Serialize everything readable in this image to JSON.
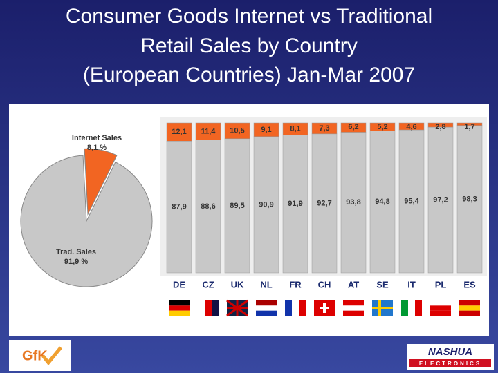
{
  "title_lines": [
    "Consumer Goods Internet vs Traditional",
    "Retail Sales by Country",
    "(European Countries) Jan-Mar 2007"
  ],
  "logos": {
    "left": "GfK",
    "right": "NASHUA",
    "right_sub": "ELECTRONICS"
  },
  "chart_data": [
    {
      "type": "pie",
      "categories": [
        "Internet Sales",
        "Trad. Sales"
      ],
      "values": [
        8.1,
        91.9
      ],
      "value_labels": [
        "8,1 %",
        "91,9 %"
      ],
      "colors": [
        "#f26522",
        "#c8c8c8"
      ]
    },
    {
      "type": "bar",
      "stacked": true,
      "categories": [
        "DE",
        "CZ",
        "UK",
        "NL",
        "FR",
        "CH",
        "AT",
        "SE",
        "IT",
        "PL",
        "ES"
      ],
      "ylim": [
        0,
        100
      ],
      "series": [
        {
          "name": "Internet",
          "color": "#f26522",
          "values": [
            12.1,
            11.4,
            10.5,
            9.1,
            8.1,
            7.3,
            6.2,
            5.2,
            4.6,
            2.8,
            1.7
          ],
          "value_labels": [
            "12,1",
            "11,4",
            "10,5",
            "9,1",
            "8,1",
            "7,3",
            "6,2",
            "5,2",
            "4,6",
            "2,8",
            "1,7"
          ]
        },
        {
          "name": "Traditional",
          "color": "#c8c8c8",
          "values": [
            87.9,
            88.6,
            89.5,
            90.9,
            91.9,
            92.7,
            93.8,
            94.8,
            95.4,
            97.2,
            98.3
          ],
          "value_labels": [
            "87,9",
            "88,6",
            "89,5",
            "90,9",
            "91,9",
            "92,7",
            "93,8",
            "94,8",
            "95,4",
            "97,2",
            "98,3"
          ]
        }
      ]
    }
  ]
}
